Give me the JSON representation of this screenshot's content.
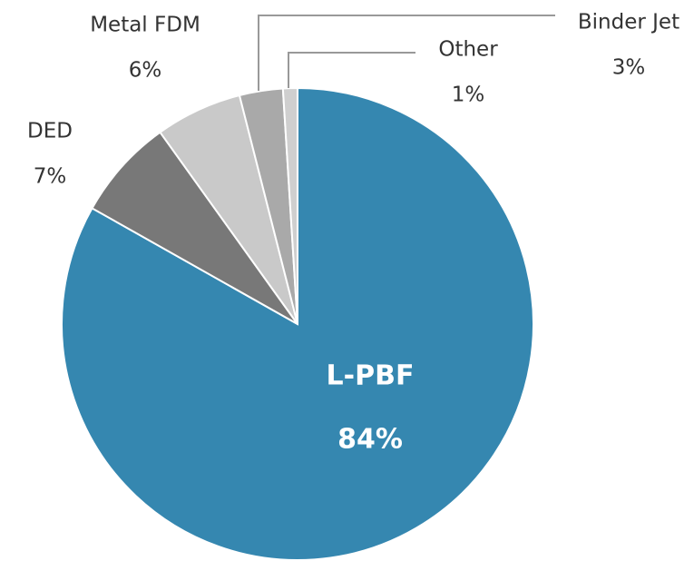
{
  "chart_data": {
    "type": "pie",
    "categories": [
      "L-PBF",
      "DED",
      "Metal FDM",
      "Binder Jet",
      "Other"
    ],
    "values": [
      84,
      7,
      6,
      3,
      1
    ],
    "value_labels": [
      "84%",
      "7%",
      "6%",
      "3%",
      "1%"
    ],
    "colors": [
      "#3587b0",
      "#787878",
      "#c9c9c9",
      "#a9a9a9",
      "#cfcfcf"
    ]
  }
}
